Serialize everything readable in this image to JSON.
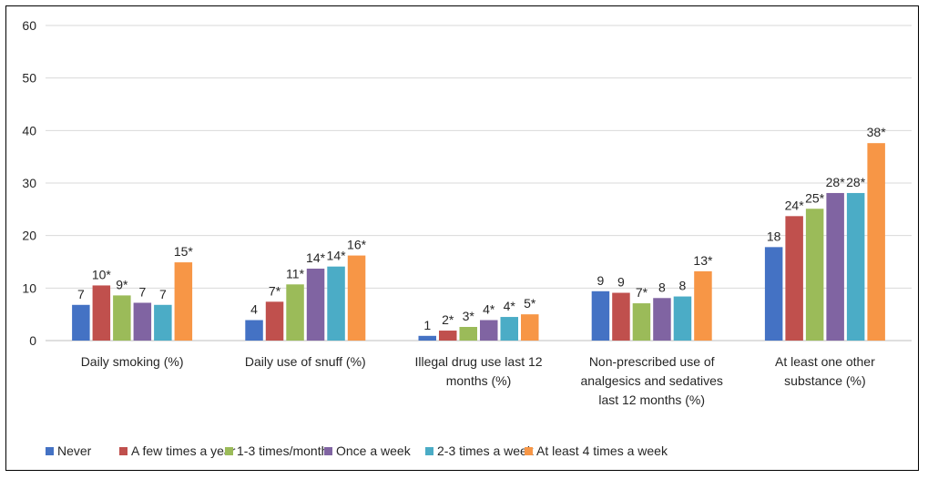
{
  "chart_data": {
    "type": "bar",
    "categories": [
      [
        "Daily smoking (%)"
      ],
      [
        "Daily use of snuff (%)"
      ],
      [
        "Illegal drug use last 12",
        "months (%)"
      ],
      [
        "Non-prescribed use of",
        "analgesics and sedatives",
        "last 12 months (%)"
      ],
      [
        "At least one other",
        "substance (%)"
      ]
    ],
    "series": [
      {
        "name": "Never",
        "color": "#4472C4",
        "values": [
          6.8,
          3.9,
          0.9,
          9.4,
          17.8
        ],
        "labels": [
          "7",
          "4",
          "1",
          "9",
          "18"
        ]
      },
      {
        "name": "A few times a year",
        "color": "#C0504D",
        "values": [
          10.5,
          7.4,
          1.9,
          9.1,
          23.7
        ],
        "labels": [
          "10*",
          "7*",
          "2*",
          "9",
          "24*"
        ]
      },
      {
        "name": "1-3 times/month",
        "color": "#9BBB59",
        "values": [
          8.6,
          10.7,
          2.6,
          7.1,
          25.1
        ],
        "labels": [
          "9*",
          "11*",
          "3*",
          "7*",
          "25*"
        ]
      },
      {
        "name": "Once a week",
        "color": "#8064A2",
        "values": [
          7.2,
          13.7,
          3.9,
          8.1,
          28.1
        ],
        "labels": [
          "7",
          "14*",
          "4*",
          "8",
          "28*"
        ]
      },
      {
        "name": "2-3 times a week",
        "color": "#4BACC6",
        "values": [
          6.8,
          14.1,
          4.5,
          8.4,
          28.1
        ],
        "labels": [
          "7",
          "14*",
          "4*",
          "8",
          "28*"
        ]
      },
      {
        "name": "At least 4 times a week",
        "color": "#F79646",
        "values": [
          14.9,
          16.2,
          5.0,
          13.2,
          37.6
        ],
        "labels": [
          "15*",
          "16*",
          "5*",
          "13*",
          "38*"
        ]
      }
    ],
    "yticks": [
      0,
      10,
      20,
      30,
      40,
      50,
      60
    ],
    "ylim": [
      0,
      60
    ],
    "grid": true,
    "legend_position": "bottom",
    "title": "",
    "xlabel": "",
    "ylabel": ""
  }
}
